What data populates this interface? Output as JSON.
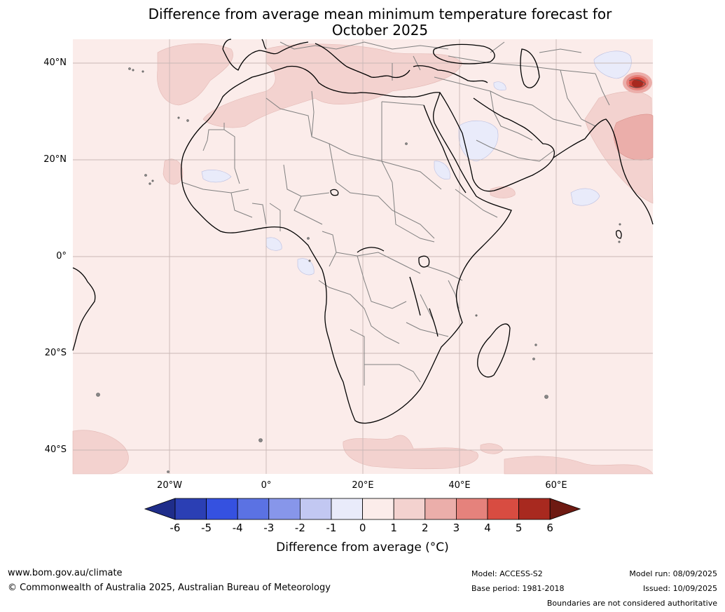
{
  "title_line1": "Difference from average mean minimum temperature forecast for",
  "title_line2": "October 2025",
  "lat_labels": [
    "40°N",
    "20°N",
    "0°",
    "20°S",
    "40°S"
  ],
  "lon_labels": [
    "20°W",
    "0°",
    "20°E",
    "40°E",
    "60°E"
  ],
  "colorbar": {
    "ticks": [
      "-6",
      "-5",
      "-4",
      "-3",
      "-2",
      "-1",
      "0",
      "1",
      "2",
      "3",
      "4",
      "5",
      "6"
    ],
    "colors": [
      "#1f2d8a",
      "#2b3fb4",
      "#3551e0",
      "#5b72e3",
      "#8796ea",
      "#c2c8f2",
      "#e9ebfa",
      "#fbecea",
      "#f3d2cf",
      "#ebaeaa",
      "#e5827c",
      "#d84c41",
      "#a8291f",
      "#6e1a12"
    ],
    "label": "Difference from average (°C)"
  },
  "footer": {
    "website": "www.bom.gov.au/climate",
    "copyright": "© Commonwealth of Australia 2025, Australian Bureau of Meteorology",
    "model": "Model: ACCESS-S2",
    "base_period": "Base period: 1981-2018",
    "model_run": "Model run: 08/09/2025",
    "issued": "Issued: 10/09/2025",
    "disclaimer": "Boundaries are not considered authoritative"
  },
  "map_colors": {
    "background": "#fbecea",
    "anomaly_1_2": "#f3d2cf",
    "anomaly_2_3": "#ebaeaa",
    "anomaly_neg": "#e9ebfa",
    "hotspot": "#a8291f",
    "coast": "#000000",
    "borders": "#808080",
    "grid": "#c8b8b6"
  }
}
